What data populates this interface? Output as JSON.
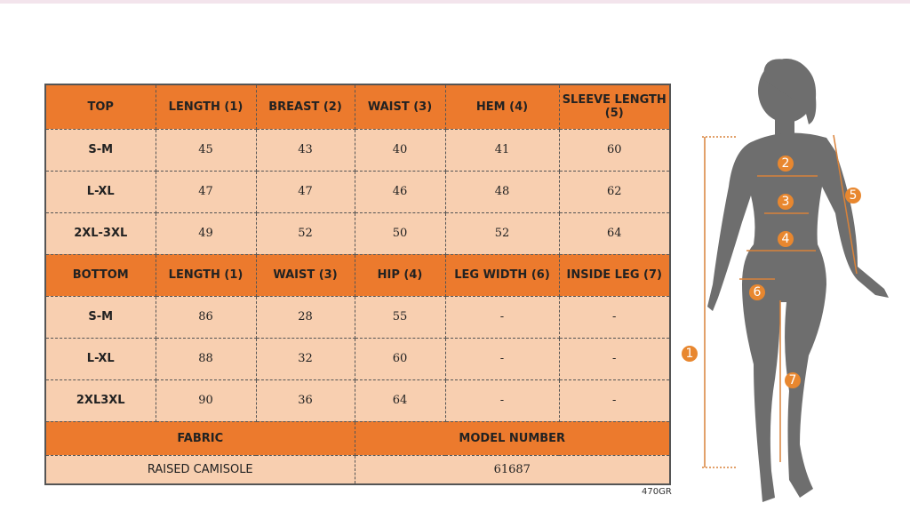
{
  "top": {
    "header": [
      "TOP",
      "LENGTH (1)",
      "BREAST (2)",
      "WAIST (3)",
      "HEM (4)",
      "SLEEVE LENGTH (5)"
    ],
    "rows": [
      [
        "S-M",
        "45",
        "43",
        "40",
        "41",
        "60"
      ],
      [
        "L-XL",
        "47",
        "47",
        "46",
        "48",
        "62"
      ],
      [
        "2XL-3XL",
        "49",
        "52",
        "50",
        "52",
        "64"
      ]
    ]
  },
  "bottom": {
    "header": [
      "BOTTOM",
      "LENGTH (1)",
      "WAIST (3)",
      "HIP (4)",
      "LEG WIDTH (6)",
      "INSIDE LEG (7)"
    ],
    "rows": [
      [
        "S-M",
        "86",
        "28",
        "55",
        "-",
        "-"
      ],
      [
        "L-XL",
        "88",
        "32",
        "60",
        "-",
        "-"
      ],
      [
        "2XL3XL",
        "90",
        "36",
        "64",
        "-",
        "-"
      ]
    ]
  },
  "fabric": {
    "header": "FABRIC",
    "value": "RAISED CAMISOLE"
  },
  "model_number": {
    "header": "MODEL NUMBER",
    "value": "61687"
  },
  "code": "470GR",
  "markers": [
    "1",
    "2",
    "3",
    "4",
    "5",
    "6",
    "7"
  ]
}
